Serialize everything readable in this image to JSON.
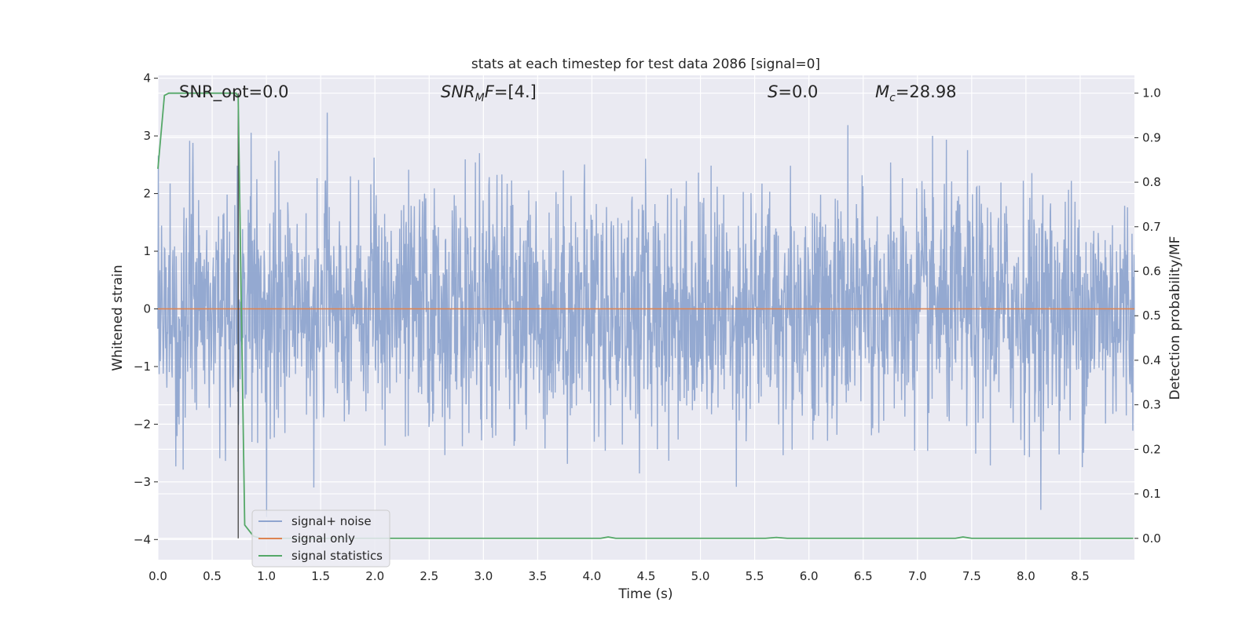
{
  "chart_data": {
    "type": "line",
    "title": "stats at each timestep for test data 2086 [signal=0]",
    "xlabel": "Time (s)",
    "ylabel": "Whitened strain",
    "y2label": "Detection probability/MF",
    "xlim": [
      0.0,
      9.0
    ],
    "ylim": [
      -4.35,
      4.05
    ],
    "y2lim": [
      -0.048,
      1.04
    ],
    "xticks": [
      "0.0",
      "0.5",
      "1.0",
      "1.5",
      "2.0",
      "2.5",
      "3.0",
      "3.5",
      "4.0",
      "4.5",
      "5.0",
      "5.5",
      "6.0",
      "6.5",
      "7.0",
      "7.5",
      "8.0",
      "8.5"
    ],
    "yticks": [
      "4",
      "3",
      "2",
      "1",
      "0",
      "−1",
      "−2",
      "−3",
      "−4"
    ],
    "y2ticks": [
      "1.0",
      "0.9",
      "0.8",
      "0.7",
      "0.6",
      "0.5",
      "0.4",
      "0.3",
      "0.2",
      "0.1",
      "0.0"
    ],
    "grid": true,
    "legend_position": "bottom-left",
    "annotations": {
      "snr_opt": "SNR_opt=0.0",
      "snr_mf_main": "SNR",
      "snr_mf_sub": "M",
      "snr_mf_rest": "F=[4.]",
      "s_main": "S",
      "s_rest": "=0.0",
      "mc_main": "M",
      "mc_sub": "c",
      "mc_rest": "=28.98"
    },
    "vline_x": 0.74,
    "series": [
      {
        "name": "signal+ noise",
        "color": "#8fa5cf",
        "description_envelope": {
          "x_range": [
            0.0,
            9.0
          ],
          "typical_abs": 2.0,
          "peak_max": 3.65,
          "peak_min": -4.0
        }
      },
      {
        "name": "signal only",
        "color": "#dd8452",
        "x": [
          0.0,
          9.0
        ],
        "y": [
          0.0,
          0.0
        ]
      },
      {
        "name": "signal statistics",
        "color": "#55a868",
        "axis": "right",
        "x": [
          0.0,
          0.06,
          0.1,
          0.2,
          0.4,
          0.6,
          0.72,
          0.74,
          0.77,
          0.8,
          0.88,
          0.95,
          1.5,
          2.0,
          3.0,
          4.0,
          4.08,
          4.15,
          4.22,
          4.4,
          5.0,
          5.6,
          5.7,
          5.8,
          6.0,
          7.0,
          7.35,
          7.42,
          7.5,
          8.0,
          8.5,
          8.99
        ],
        "y": [
          0.83,
          0.995,
          1.0,
          1.0,
          1.0,
          1.0,
          1.0,
          0.99,
          0.5,
          0.03,
          0.005,
          0.0,
          0.0,
          0.0,
          0.0,
          0.0,
          0.0,
          0.003,
          0.0,
          0.0,
          0.0,
          0.0,
          0.002,
          0.0,
          0.0,
          0.0,
          0.0,
          0.003,
          0.0,
          0.0,
          0.0,
          0.0
        ]
      }
    ]
  }
}
